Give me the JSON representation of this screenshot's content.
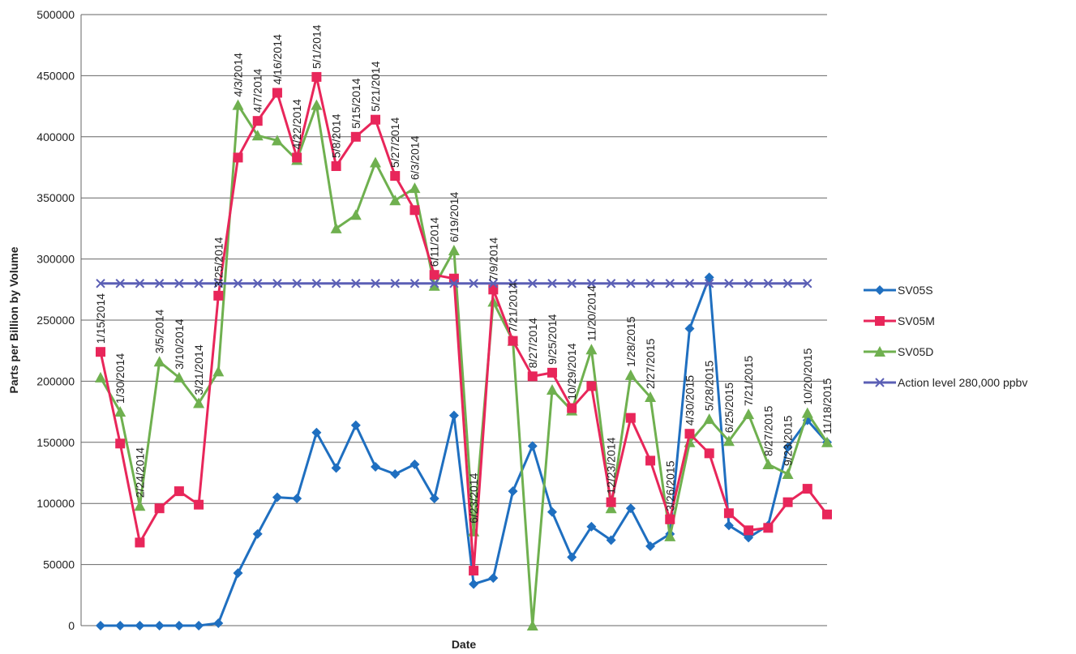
{
  "chart_data": {
    "type": "line",
    "x_label": "Date",
    "y_label": "Parts per Billion by Volume",
    "categories": [
      "1/15/2014",
      "1/30/2014",
      "2/24/2014",
      "3/5/2014",
      "3/10/2014",
      "3/21/2014",
      "3/25/2014",
      "4/3/2014",
      "4/7/2014",
      "4/16/2014",
      "4/22/2014",
      "5/1/2014",
      "5/8/2014",
      "5/15/2014",
      "5/21/2014",
      "5/27/2014",
      "6/3/2014",
      "6/11/2014",
      "6/19/2014",
      "6/23/2014",
      "7/9/2014",
      "7/21/2014",
      "8/27/2014",
      "9/25/2014",
      "10/29/2014",
      "11/20/2014",
      "12/23/2014",
      "1/28/2015",
      "2/27/2015",
      "3/26/2015",
      "4/30/2015",
      "5/28/2015",
      "6/25/2015",
      "7/21/2015",
      "8/27/2015",
      "9/23/2015",
      "10/20/2015",
      "11/18/2015"
    ],
    "series": [
      {
        "name": "SV05S",
        "color": "#1f6fc0",
        "marker": "diamond",
        "values": [
          0,
          0,
          0,
          0,
          0,
          0,
          2000,
          43000,
          75000,
          105000,
          104000,
          158000,
          129000,
          164000,
          130000,
          124000,
          132000,
          104000,
          172000,
          34000,
          39000,
          110000,
          147000,
          93000,
          56000,
          81000,
          70000,
          96000,
          65000,
          75000,
          243000,
          285000,
          82000,
          72000,
          82000,
          146000,
          168000,
          150000
        ]
      },
      {
        "name": "SV05M",
        "color": "#e8265a",
        "marker": "square",
        "values": [
          224000,
          149000,
          68000,
          96000,
          110000,
          99000,
          270000,
          383000,
          413000,
          436000,
          383000,
          449000,
          376000,
          400000,
          414000,
          368000,
          340000,
          287000,
          284000,
          45000,
          275000,
          233000,
          204000,
          207000,
          178000,
          196000,
          101000,
          170000,
          135000,
          87000,
          157000,
          141000,
          92000,
          78000,
          80000,
          101000,
          112000,
          91000
        ]
      },
      {
        "name": "SV05D",
        "color": "#6fb04f",
        "marker": "triangle",
        "values": [
          203000,
          175000,
          98000,
          216000,
          203000,
          182000,
          208000,
          426000,
          401000,
          397000,
          381000,
          426000,
          325000,
          336000,
          379000,
          348000,
          358000,
          278000,
          307000,
          77000,
          265000,
          233000,
          0,
          193000,
          176000,
          226000,
          96000,
          205000,
          187000,
          73000,
          150000,
          169000,
          151000,
          173000,
          132000,
          124000,
          174000,
          150000
        ]
      },
      {
        "name": "Action level 280,000 ppbv",
        "color": "#5b5fb5",
        "marker": "x",
        "values": [
          280000,
          280000,
          280000,
          280000,
          280000,
          280000,
          280000,
          280000,
          280000,
          280000,
          280000,
          280000,
          280000,
          280000,
          280000,
          280000,
          280000,
          280000,
          280000,
          280000,
          280000,
          280000,
          280000,
          280000,
          280000,
          280000,
          280000,
          280000,
          280000,
          280000,
          280000,
          280000,
          280000,
          280000,
          280000,
          280000,
          280000,
          null
        ]
      }
    ],
    "ylim": [
      0,
      500000
    ],
    "yticks": [
      0,
      50000,
      100000,
      150000,
      200000,
      250000,
      300000,
      350000,
      400000,
      450000,
      500000
    ],
    "grid": true,
    "legend": "right"
  }
}
